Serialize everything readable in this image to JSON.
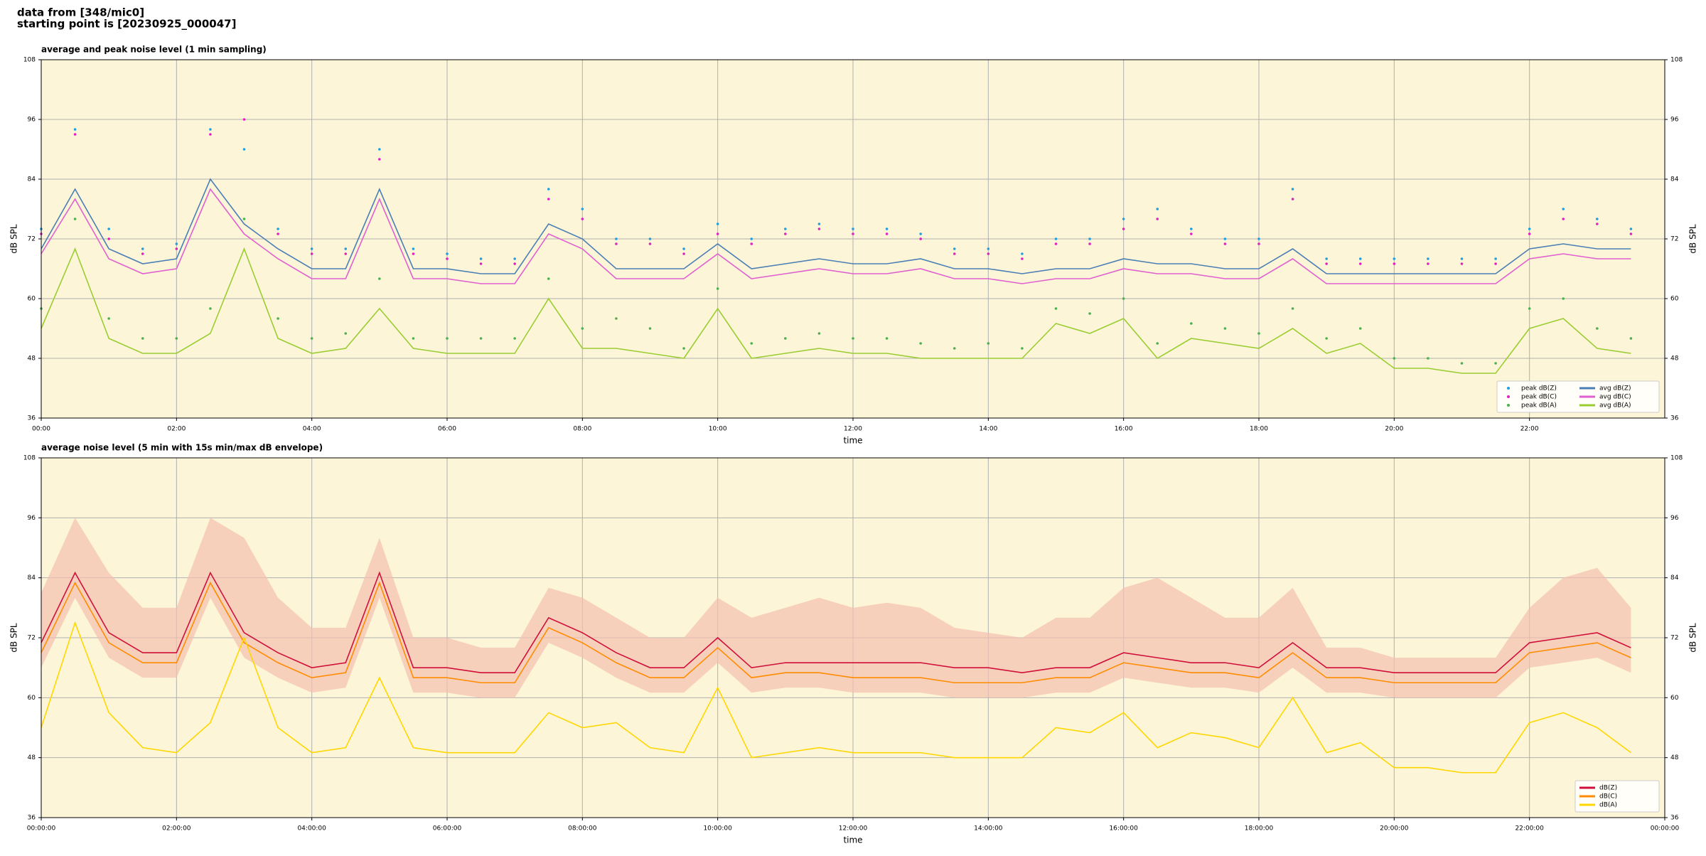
{
  "header": {
    "lines": [
      "data from [348/mic0]",
      "starting point is [20230925_000047]"
    ]
  },
  "chart_data": [
    {
      "type": "line",
      "title": "average and peak noise level (1 min sampling)",
      "xlabel": "time",
      "ylabel": "dB SPL",
      "xlim": [
        0,
        24
      ],
      "ylim": [
        36,
        108
      ],
      "yticks": [
        36,
        48,
        60,
        72,
        84,
        96,
        108
      ],
      "xticks": [
        {
          "value": 0,
          "label": "00:00"
        },
        {
          "value": 2,
          "label": "02:00"
        },
        {
          "value": 4,
          "label": "04:00"
        },
        {
          "value": 6,
          "label": "06:00"
        },
        {
          "value": 8,
          "label": "08:00"
        },
        {
          "value": 10,
          "label": "10:00"
        },
        {
          "value": 12,
          "label": "12:00"
        },
        {
          "value": 14,
          "label": "14:00"
        },
        {
          "value": 16,
          "label": "16:00"
        },
        {
          "value": 18,
          "label": "18:00"
        },
        {
          "value": 20,
          "label": "20:00"
        },
        {
          "value": 22,
          "label": "22:00"
        }
      ],
      "grid": true,
      "legend": "lower right",
      "legend_ncol": 2,
      "background": "#fdf5d8",
      "x": [
        0,
        0.5,
        1,
        1.5,
        2,
        2.5,
        3,
        3.5,
        4,
        4.5,
        5,
        5.5,
        6,
        6.5,
        7,
        7.5,
        8,
        8.5,
        9,
        9.5,
        10,
        10.5,
        11,
        11.5,
        12,
        12.5,
        13,
        13.5,
        14,
        14.5,
        15,
        15.5,
        16,
        16.5,
        17,
        17.5,
        18,
        18.5,
        19,
        19.5,
        20,
        20.5,
        21,
        21.5,
        22,
        22.5,
        23,
        23.5
      ],
      "series": [
        {
          "name": "peak dB(Z)",
          "color": "#1f9fe0",
          "marker": true,
          "values": [
            74,
            94,
            74,
            70,
            71,
            94,
            90,
            74,
            70,
            70,
            90,
            70,
            69,
            68,
            68,
            82,
            78,
            72,
            72,
            70,
            75,
            72,
            74,
            75,
            74,
            74,
            73,
            70,
            70,
            69,
            72,
            72,
            76,
            78,
            74,
            72,
            72,
            82,
            68,
            68,
            68,
            68,
            68,
            68,
            74,
            78,
            76,
            74
          ]
        },
        {
          "name": "peak dB(C)",
          "color": "#e020c0",
          "marker": true,
          "values": [
            73,
            93,
            72,
            69,
            70,
            93,
            96,
            73,
            69,
            69,
            88,
            69,
            68,
            67,
            67,
            80,
            76,
            71,
            71,
            69,
            73,
            71,
            73,
            74,
            73,
            73,
            72,
            69,
            69,
            68,
            71,
            71,
            74,
            76,
            73,
            71,
            71,
            80,
            67,
            67,
            67,
            67,
            67,
            67,
            73,
            76,
            75,
            73
          ]
        },
        {
          "name": "peak dB(A)",
          "color": "#4caf50",
          "marker": true,
          "values": [
            58,
            76,
            56,
            52,
            52,
            58,
            76,
            56,
            52,
            53,
            64,
            52,
            52,
            52,
            52,
            64,
            54,
            56,
            54,
            50,
            62,
            51,
            52,
            53,
            52,
            52,
            51,
            50,
            51,
            50,
            58,
            57,
            60,
            51,
            55,
            54,
            53,
            58,
            52,
            54,
            48,
            48,
            47,
            47,
            58,
            60,
            54,
            52
          ]
        },
        {
          "name": "avg dB(Z)",
          "color": "#4a7fb5",
          "values": [
            70,
            82,
            70,
            67,
            68,
            84,
            75,
            70,
            66,
            66,
            82,
            66,
            66,
            65,
            65,
            75,
            72,
            66,
            66,
            66,
            71,
            66,
            67,
            68,
            67,
            67,
            68,
            66,
            66,
            65,
            66,
            66,
            68,
            67,
            67,
            66,
            66,
            70,
            65,
            65,
            65,
            65,
            65,
            65,
            70,
            71,
            70,
            70
          ]
        },
        {
          "name": "avg dB(C)",
          "color": "#e060d0",
          "values": [
            69,
            80,
            68,
            65,
            66,
            82,
            73,
            68,
            64,
            64,
            80,
            64,
            64,
            63,
            63,
            73,
            70,
            64,
            64,
            64,
            69,
            64,
            65,
            66,
            65,
            65,
            66,
            64,
            64,
            63,
            64,
            64,
            66,
            65,
            65,
            64,
            64,
            68,
            63,
            63,
            63,
            63,
            63,
            63,
            68,
            69,
            68,
            68
          ]
        },
        {
          "name": "avg dB(A)",
          "color": "#9acd32",
          "values": [
            54,
            70,
            52,
            49,
            49,
            53,
            70,
            52,
            49,
            50,
            58,
            50,
            49,
            49,
            49,
            60,
            50,
            50,
            49,
            48,
            58,
            48,
            49,
            50,
            49,
            49,
            48,
            48,
            48,
            48,
            55,
            53,
            56,
            48,
            52,
            51,
            50,
            54,
            49,
            51,
            46,
            46,
            45,
            45,
            54,
            56,
            50,
            49
          ]
        }
      ]
    },
    {
      "type": "line",
      "title": "average noise level (5 min with 15s min/max dB envelope)",
      "xlabel": "time",
      "ylabel": "dB SPL",
      "xlim": [
        0,
        24
      ],
      "ylim": [
        36,
        108
      ],
      "yticks": [
        36,
        48,
        60,
        72,
        84,
        96,
        108
      ],
      "xticks": [
        {
          "value": 0,
          "label": "00:00:00"
        },
        {
          "value": 2,
          "label": "02:00:00"
        },
        {
          "value": 4,
          "label": "04:00:00"
        },
        {
          "value": 6,
          "label": "06:00:00"
        },
        {
          "value": 8,
          "label": "08:00:00"
        },
        {
          "value": 10,
          "label": "10:00:00"
        },
        {
          "value": 12,
          "label": "12:00:00"
        },
        {
          "value": 14,
          "label": "14:00:00"
        },
        {
          "value": 16,
          "label": "16:00:00"
        },
        {
          "value": 18,
          "label": "18:00:00"
        },
        {
          "value": 20,
          "label": "20:00:00"
        },
        {
          "value": 22,
          "label": "22:00:00"
        },
        {
          "value": 24,
          "label": "00:00:00"
        }
      ],
      "grid": true,
      "legend": "lower right",
      "legend_ncol": 1,
      "background": "#fdf5d8",
      "x": [
        0,
        0.5,
        1,
        1.5,
        2,
        2.5,
        3,
        3.5,
        4,
        4.5,
        5,
        5.5,
        6,
        6.5,
        7,
        7.5,
        8,
        8.5,
        9,
        9.5,
        10,
        10.5,
        11,
        11.5,
        12,
        12.5,
        13,
        13.5,
        14,
        14.5,
        15,
        15.5,
        16,
        16.5,
        17,
        17.5,
        18,
        18.5,
        19,
        19.5,
        20,
        20.5,
        21,
        21.5,
        22,
        22.5,
        23,
        23.5
      ],
      "envelope": {
        "color": "#f4c0b0",
        "low": [
          66,
          80,
          68,
          64,
          64,
          80,
          68,
          64,
          61,
          62,
          80,
          61,
          61,
          60,
          60,
          71,
          68,
          64,
          61,
          61,
          67,
          61,
          62,
          62,
          61,
          61,
          61,
          60,
          60,
          60,
          61,
          61,
          64,
          63,
          62,
          62,
          61,
          66,
          61,
          61,
          60,
          60,
          60,
          60,
          66,
          67,
          68,
          65
        ],
        "high": [
          81,
          96,
          85,
          78,
          78,
          96,
          92,
          80,
          74,
          74,
          92,
          72,
          72,
          70,
          70,
          82,
          80,
          76,
          72,
          72,
          80,
          76,
          78,
          80,
          78,
          79,
          78,
          74,
          73,
          72,
          76,
          76,
          82,
          84,
          80,
          76,
          76,
          82,
          70,
          70,
          68,
          68,
          68,
          68,
          78,
          84,
          86,
          78
        ]
      },
      "series": [
        {
          "name": "dB(Z)",
          "color": "#d0103a",
          "values": [
            71,
            85,
            73,
            69,
            69,
            85,
            73,
            69,
            66,
            67,
            85,
            66,
            66,
            65,
            65,
            76,
            73,
            69,
            66,
            66,
            72,
            66,
            67,
            67,
            67,
            67,
            67,
            66,
            66,
            65,
            66,
            66,
            69,
            68,
            67,
            67,
            66,
            71,
            66,
            66,
            65,
            65,
            65,
            65,
            71,
            72,
            73,
            70
          ]
        },
        {
          "name": "dB(C)",
          "color": "#ff8c00",
          "values": [
            69,
            83,
            71,
            67,
            67,
            83,
            71,
            67,
            64,
            65,
            83,
            64,
            64,
            63,
            63,
            74,
            71,
            67,
            64,
            64,
            70,
            64,
            65,
            65,
            64,
            64,
            64,
            63,
            63,
            63,
            64,
            64,
            67,
            66,
            65,
            65,
            64,
            69,
            64,
            64,
            63,
            63,
            63,
            63,
            69,
            70,
            71,
            68
          ]
        },
        {
          "name": "dB(A)",
          "color": "#ffd700",
          "values": [
            54,
            75,
            57,
            50,
            49,
            55,
            72,
            54,
            49,
            50,
            64,
            50,
            49,
            49,
            49,
            57,
            54,
            55,
            50,
            49,
            62,
            48,
            49,
            50,
            49,
            49,
            49,
            48,
            48,
            48,
            54,
            53,
            57,
            50,
            53,
            52,
            50,
            60,
            49,
            51,
            46,
            46,
            45,
            45,
            55,
            57,
            54,
            49
          ]
        }
      ]
    }
  ]
}
